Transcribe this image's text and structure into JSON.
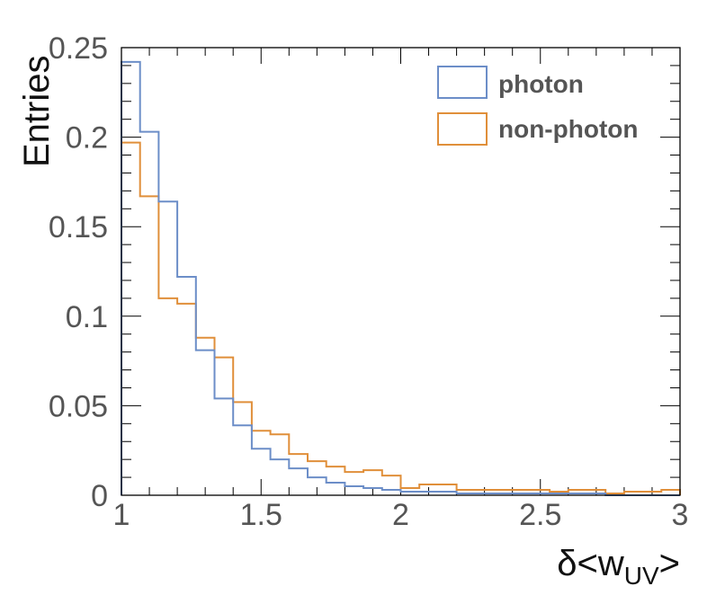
{
  "chart_data": {
    "type": "histogram",
    "xlabel_main": "δ<w",
    "xlabel_sub": "UV",
    "xlabel_end": ">",
    "ylabel": "Entries",
    "xlim": [
      1,
      3
    ],
    "ylim": [
      0,
      0.25
    ],
    "x_ticks": [
      {
        "v": 1,
        "label": "1"
      },
      {
        "v": 1.5,
        "label": "1.5"
      },
      {
        "v": 2,
        "label": "2"
      },
      {
        "v": 2.5,
        "label": "2.5"
      },
      {
        "v": 3,
        "label": "3"
      }
    ],
    "y_ticks": [
      {
        "v": 0,
        "label": "0"
      },
      {
        "v": 0.05,
        "label": "0.05"
      },
      {
        "v": 0.1,
        "label": "0.1"
      },
      {
        "v": 0.15,
        "label": "0.15"
      },
      {
        "v": 0.2,
        "label": "0.2"
      },
      {
        "v": 0.25,
        "label": "0.25"
      }
    ],
    "bin_edges_start": 1,
    "bin_width": 0.0667,
    "legend_position": "top-right",
    "series": [
      {
        "name": "photon",
        "color": "#6c8ec8",
        "values": [
          0.242,
          0.203,
          0.164,
          0.122,
          0.081,
          0.054,
          0.039,
          0.026,
          0.02,
          0.015,
          0.01,
          0.007,
          0.005,
          0.004,
          0.003,
          0.002,
          0.002,
          0.002,
          0.001,
          0.001,
          0.001,
          0.001,
          0.001,
          0.001,
          0.001,
          0.001,
          0.0,
          0.0,
          0.0,
          0.0
        ]
      },
      {
        "name": "non-photon",
        "color": "#e08f3a",
        "values": [
          0.197,
          0.167,
          0.11,
          0.107,
          0.088,
          0.077,
          0.052,
          0.036,
          0.034,
          0.023,
          0.019,
          0.016,
          0.013,
          0.014,
          0.011,
          0.004,
          0.006,
          0.006,
          0.003,
          0.003,
          0.003,
          0.003,
          0.003,
          0.002,
          0.003,
          0.003,
          0.001,
          0.002,
          0.002,
          0.003
        ]
      }
    ]
  }
}
